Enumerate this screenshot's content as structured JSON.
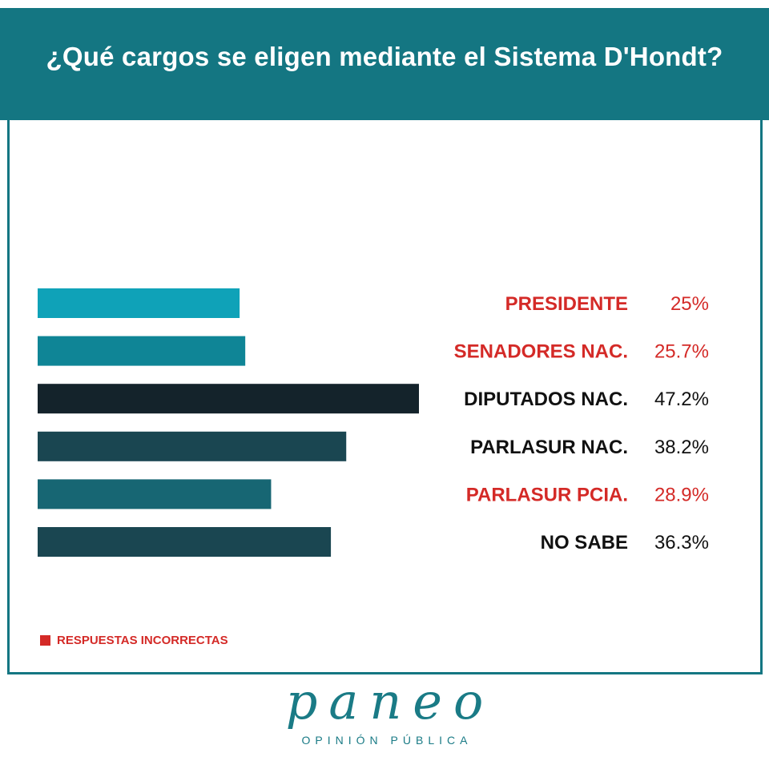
{
  "title": "¿Qué cargos se eligen mediante el Sistema D'Hondt?",
  "chart_data": {
    "type": "bar",
    "orientation": "horizontal",
    "title": "¿Qué cargos se eligen mediante el Sistema D'Hondt?",
    "categories": [
      "PRESIDENTE",
      "SENADORES NAC.",
      "DIPUTADOS NAC.",
      "PARLASUR NAC.",
      "PARLASUR PCIA.",
      "NO SABE"
    ],
    "values": [
      25,
      25.7,
      47.2,
      38.2,
      28.9,
      36.3
    ],
    "value_labels": [
      "25%",
      "25.7%",
      "47.2%",
      "38.2%",
      "28.9%",
      "36.3%"
    ],
    "incorrect": [
      true,
      true,
      false,
      false,
      true,
      false
    ],
    "bar_colors": [
      "#0fa2b8",
      "#0f8596",
      "#14232b",
      "#1a4651",
      "#176673",
      "#1a4651"
    ],
    "xlim": [
      0,
      47.2
    ],
    "legend": {
      "label": "RESPUESTAS INCORRECTAS",
      "color": "#d42a27",
      "position": "bottom-left"
    },
    "label_colors": {
      "incorrect": "#d42a27",
      "correct": "#111111"
    }
  },
  "brand": {
    "name": "paneo",
    "subtitle": "OPINIÓN PÚBLICA"
  }
}
